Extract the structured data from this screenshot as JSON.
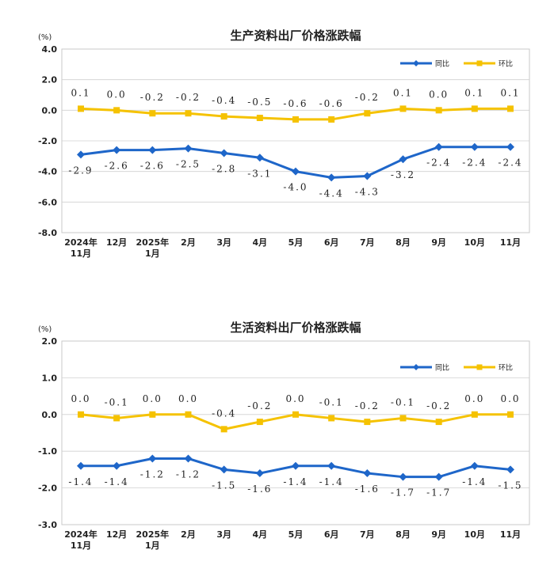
{
  "colors": {
    "yoy": "#1e66c9",
    "mom": "#f5c200"
  },
  "chart_data": [
    {
      "type": "line",
      "title": "生产资料出厂价格涨跌幅",
      "unit": "(%)",
      "ylim": [
        -8.0,
        4.0
      ],
      "yticks": [
        "4.0",
        "2.0",
        "0.0",
        "-2.0",
        "-4.0",
        "-6.0",
        "-8.0"
      ],
      "ytick_values": [
        4,
        2,
        0,
        -2,
        -4,
        -6,
        -8
      ],
      "categories": [
        [
          "2024年",
          "11月"
        ],
        [
          "12月"
        ],
        [
          "2025年",
          "1月"
        ],
        [
          "2月"
        ],
        [
          "3月"
        ],
        [
          "4月"
        ],
        [
          "5月"
        ],
        [
          "6月"
        ],
        [
          "7月"
        ],
        [
          "8月"
        ],
        [
          "9月"
        ],
        [
          "10月"
        ],
        [
          "11月"
        ]
      ],
      "series": [
        {
          "name": "同比",
          "key": "yoy",
          "values": [
            -2.9,
            -2.6,
            -2.6,
            -2.5,
            -2.8,
            -3.1,
            -4.0,
            -4.4,
            -4.3,
            -3.2,
            -2.4,
            -2.4,
            -2.4
          ],
          "labels": [
            "-2.9",
            "-2.6",
            "-2.6",
            "-2.5",
            "-2.8",
            "-3.1",
            "-4.0",
            "-4.4",
            "-4.3",
            "-3.2",
            "-2.4",
            "-2.4",
            "-2.4"
          ]
        },
        {
          "name": "环比",
          "key": "mom",
          "values": [
            0.1,
            0.0,
            -0.2,
            -0.2,
            -0.4,
            -0.5,
            -0.6,
            -0.6,
            -0.2,
            0.1,
            0.0,
            0.1,
            0.1
          ],
          "labels": [
            "0.1",
            "0.0",
            "-0.2",
            "-0.2",
            "-0.4",
            "-0.5",
            "-0.6",
            "-0.6",
            "-0.2",
            "0.1",
            "0.0",
            "0.1",
            "0.1"
          ]
        }
      ]
    },
    {
      "type": "line",
      "title": "生活资料出厂价格涨跌幅",
      "unit": "(%)",
      "ylim": [
        -3.0,
        2.0
      ],
      "yticks": [
        "2.0",
        "1.0",
        "0.0",
        "-1.0",
        "-2.0",
        "-3.0"
      ],
      "ytick_values": [
        2,
        1,
        0,
        -1,
        -2,
        -3
      ],
      "categories": [
        [
          "2024年",
          "11月"
        ],
        [
          "12月"
        ],
        [
          "2025年",
          "1月"
        ],
        [
          "2月"
        ],
        [
          "3月"
        ],
        [
          "4月"
        ],
        [
          "5月"
        ],
        [
          "6月"
        ],
        [
          "7月"
        ],
        [
          "8月"
        ],
        [
          "9月"
        ],
        [
          "10月"
        ],
        [
          "11月"
        ]
      ],
      "series": [
        {
          "name": "同比",
          "key": "yoy",
          "values": [
            -1.4,
            -1.4,
            -1.2,
            -1.2,
            -1.5,
            -1.6,
            -1.4,
            -1.4,
            -1.6,
            -1.7,
            -1.7,
            -1.4,
            -1.5
          ],
          "labels": [
            "-1.4",
            "-1.4",
            "-1.2",
            "-1.2",
            "-1.5",
            "-1.6",
            "-1.4",
            "-1.4",
            "-1.6",
            "-1.7",
            "-1.7",
            "-1.4",
            "-1.5"
          ]
        },
        {
          "name": "环比",
          "key": "mom",
          "values": [
            0.0,
            -0.1,
            0.0,
            0.0,
            -0.4,
            -0.2,
            0.0,
            -0.1,
            -0.2,
            -0.1,
            -0.2,
            0.0,
            0.0
          ],
          "labels": [
            "0.0",
            "-0.1",
            "0.0",
            "0.0",
            "-0.4",
            "-0.2",
            "0.0",
            "-0.1",
            "-0.2",
            "-0.1",
            "-0.2",
            "0.0",
            "0.0"
          ]
        }
      ]
    }
  ]
}
